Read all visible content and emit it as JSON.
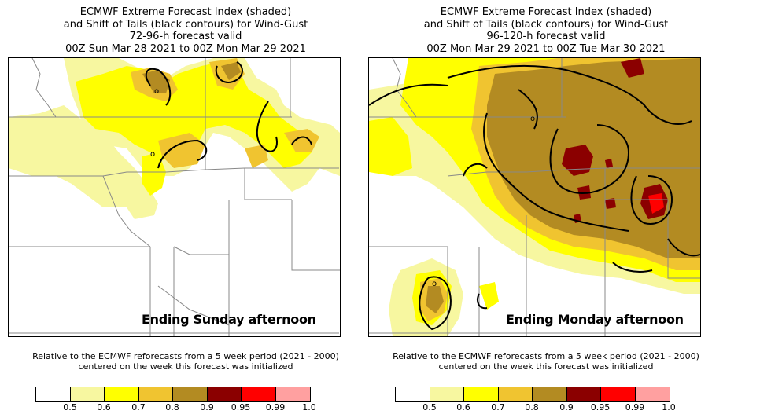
{
  "left": {
    "title": [
      "ECMWF Extreme Forecast Index (shaded)",
      "and Shift of Tails (black contours) for Wind-Gust",
      "72-96-h forecast valid",
      "00Z Sun Mar 28 2021  to  00Z Mon Mar 29 2021"
    ],
    "caption": "Ending Sunday afternoon",
    "note": [
      "Relative to the ECMWF reforecasts from a 5 week period (2021 - 2000)",
      "centered on the week this forecast was initialized"
    ]
  },
  "right": {
    "title": [
      "ECMWF Extreme Forecast Index (shaded)",
      "and Shift of Tails (black contours) for Wind-Gust",
      "96-120-h forecast valid",
      "00Z Mon Mar 29 2021  to  00Z Tue Mar 30 2021"
    ],
    "caption": "Ending Monday afternoon",
    "note": [
      "Relative to the ECMWF reforecasts from a 5 week period (2021 - 2000)",
      "centered on the week this forecast was initialized"
    ]
  },
  "colorbar": {
    "colors": [
      "#ffffff",
      "#f7f7a0",
      "#ffff00",
      "#f0c430",
      "#b38b22",
      "#8b0000",
      "#ff0000",
      "#ffa0a0"
    ],
    "ticks": [
      "0.5",
      "0.6",
      "0.7",
      "0.8",
      "0.9",
      "0.95",
      "0.99",
      "1.0"
    ]
  }
}
